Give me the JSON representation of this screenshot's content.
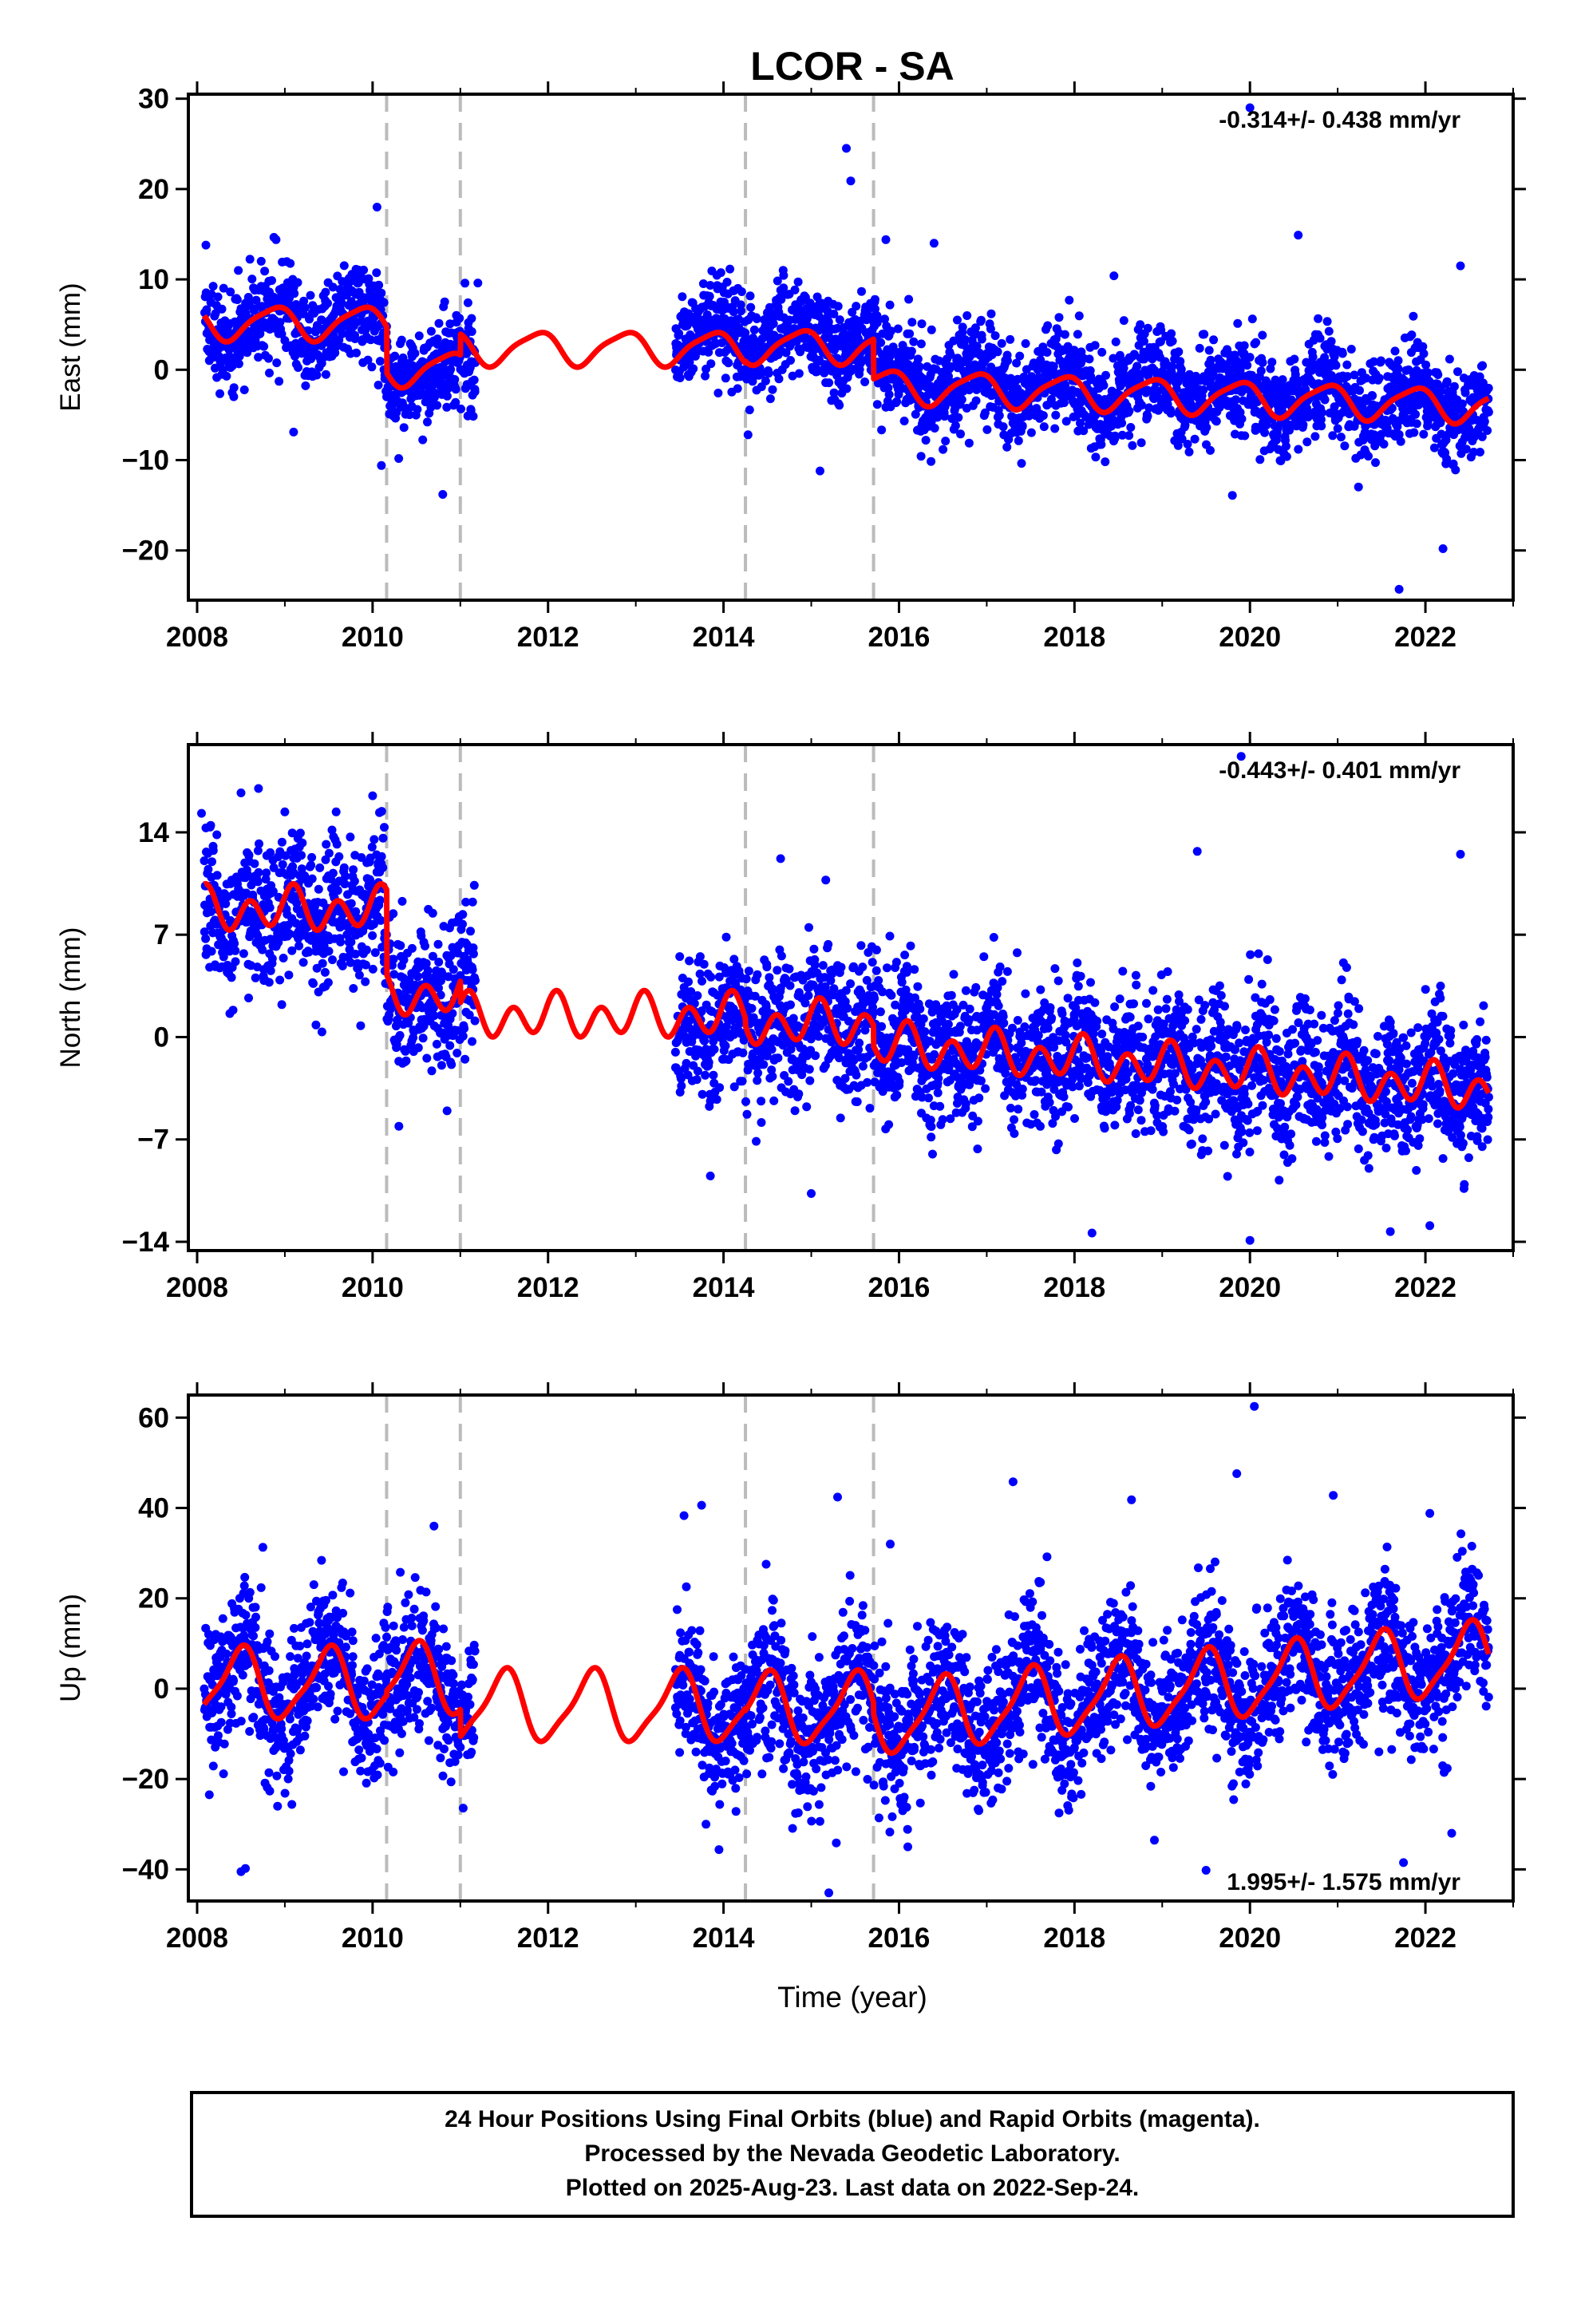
{
  "title": "LCOR - SA",
  "xlabel": "Time (year)",
  "footer": {
    "line1": "24 Hour Positions Using Final Orbits (blue) and Rapid Orbits (magenta).",
    "line2": "Processed by the Nevada Geodetic Laboratory.",
    "line3": "Plotted on 2025-Aug-23. Last data on 2022-Sep-24."
  },
  "colors": {
    "data": "#0000ff",
    "fit": "#ff0000",
    "breaks": "#bbbbbb",
    "frame": "#000000"
  },
  "chart_data": [
    {
      "type": "scatter",
      "component": "east",
      "ylabel": "East (mm)",
      "xlim": [
        2007.9,
        2023.0
      ],
      "ylim": [
        -25.5,
        30.5
      ],
      "xticks": [
        2008,
        2010,
        2012,
        2014,
        2016,
        2018,
        2020,
        2022
      ],
      "xtick_labels": [
        "2008",
        "2010",
        "2012",
        "2014",
        "2016",
        "2018",
        "2020",
        "2022"
      ],
      "yticks": [
        -20,
        -10,
        0,
        10,
        20,
        30
      ],
      "ytick_labels": [
        "−20",
        "−10",
        "0",
        "10",
        "20",
        "30"
      ],
      "rate_label": "-0.314+/- 0.438 mm/yr",
      "rate_position": "top-right",
      "breaks": [
        2010.16,
        2011.0,
        2014.25,
        2015.71
      ],
      "data_segments": [
        {
          "start": 2008.08,
          "end": 2010.13,
          "level": 5.0,
          "slope": 0.0
        },
        {
          "start": 2010.13,
          "end": 2011.17,
          "level": 0.0,
          "slope": 0.0
        },
        {
          "start": 2013.45,
          "end": 2015.75,
          "level": 3.5,
          "slope": 0.0
        },
        {
          "start": 2015.75,
          "end": 2022.72,
          "level": -0.8,
          "slope": -0.45
        }
      ],
      "noise_sigma": 2.6,
      "outliers": [
        {
          "x": 2008.1,
          "y": 13.8
        },
        {
          "x": 2008.9,
          "y": 14.4
        },
        {
          "x": 2009.1,
          "y": -6.9
        },
        {
          "x": 2010.05,
          "y": 18.0
        },
        {
          "x": 2010.1,
          "y": -10.6
        },
        {
          "x": 2010.8,
          "y": -13.8
        },
        {
          "x": 2011.2,
          "y": 9.6
        },
        {
          "x": 2015.1,
          "y": -11.2
        },
        {
          "x": 2015.4,
          "y": 24.5
        },
        {
          "x": 2015.45,
          "y": 20.9
        },
        {
          "x": 2015.85,
          "y": 14.4
        },
        {
          "x": 2016.4,
          "y": 14.0
        },
        {
          "x": 2018.45,
          "y": 10.4
        },
        {
          "x": 2019.8,
          "y": -13.9
        },
        {
          "x": 2020.0,
          "y": 29.0
        },
        {
          "x": 2020.55,
          "y": 14.9
        },
        {
          "x": 2021.7,
          "y": -24.3
        },
        {
          "x": 2022.2,
          "y": -19.8
        },
        {
          "x": 2022.4,
          "y": 11.5
        }
      ],
      "fit": {
        "segments": [
          {
            "start": 2008.08,
            "end": 2010.16,
            "level": 5.2,
            "slope": 0.0
          },
          {
            "start": 2010.16,
            "end": 2011.0,
            "level": 0.1,
            "slope": 0.0
          },
          {
            "start": 2011.0,
            "end": 2014.25,
            "level": 2.4,
            "slope": 0.0
          },
          {
            "start": 2014.25,
            "end": 2015.71,
            "level": 2.6,
            "slope": 0.0
          },
          {
            "start": 2015.71,
            "end": 2022.72,
            "level": -1.8,
            "slope": -0.314
          }
        ],
        "annual_amp": 1.8,
        "annual_phase": 2.4,
        "semiannual_amp": 0.4,
        "semiannual_phase": 1.0
      }
    },
    {
      "type": "scatter",
      "component": "north",
      "ylabel": "North (mm)",
      "xlim": [
        2007.9,
        2023.0
      ],
      "ylim": [
        -14.6,
        20.0
      ],
      "xticks": [
        2008,
        2010,
        2012,
        2014,
        2016,
        2018,
        2020,
        2022
      ],
      "xtick_labels": [
        "2008",
        "2010",
        "2012",
        "2014",
        "2016",
        "2018",
        "2020",
        "2022"
      ],
      "yticks": [
        -14,
        -7,
        0,
        7,
        14
      ],
      "ytick_labels": [
        "−14",
        "−7",
        "0",
        "7",
        "14"
      ],
      "rate_label": "-0.443+/- 0.401 mm/yr",
      "rate_position": "top-right",
      "breaks": [
        2010.16,
        2011.0,
        2014.25,
        2015.71
      ],
      "data_segments": [
        {
          "start": 2008.08,
          "end": 2010.13,
          "level": 8.6,
          "slope": 0.0
        },
        {
          "start": 2010.13,
          "end": 2011.17,
          "level": 2.8,
          "slope": 0.0
        },
        {
          "start": 2013.45,
          "end": 2015.75,
          "level": 0.8,
          "slope": 0.0
        },
        {
          "start": 2015.75,
          "end": 2022.72,
          "level": -0.5,
          "slope": -0.443
        }
      ],
      "noise_sigma": 2.4,
      "outliers": [
        {
          "x": 2008.05,
          "y": 15.3
        },
        {
          "x": 2008.5,
          "y": 16.7
        },
        {
          "x": 2008.7,
          "y": 17.0
        },
        {
          "x": 2009.0,
          "y": 15.4
        },
        {
          "x": 2010.0,
          "y": 16.5
        },
        {
          "x": 2010.3,
          "y": -6.1
        },
        {
          "x": 2013.85,
          "y": -9.5
        },
        {
          "x": 2014.65,
          "y": 12.2
        },
        {
          "x": 2015.0,
          "y": -10.7
        },
        {
          "x": 2018.2,
          "y": -13.4
        },
        {
          "x": 2019.4,
          "y": 12.7
        },
        {
          "x": 2019.9,
          "y": 19.2
        },
        {
          "x": 2020.0,
          "y": -13.9
        },
        {
          "x": 2021.6,
          "y": -13.3
        },
        {
          "x": 2022.05,
          "y": -12.9
        },
        {
          "x": 2022.4,
          "y": 12.5
        }
      ],
      "fit": {
        "segments": [
          {
            "start": 2008.08,
            "end": 2010.16,
            "level": 8.7,
            "slope": 0.0
          },
          {
            "start": 2010.16,
            "end": 2011.0,
            "level": 2.9,
            "slope": 0.0
          },
          {
            "start": 2011.0,
            "end": 2014.25,
            "level": 1.4,
            "slope": 0.0
          },
          {
            "start": 2014.25,
            "end": 2015.71,
            "level": 0.9,
            "slope": 0.0
          },
          {
            "start": 2015.71,
            "end": 2022.72,
            "level": -0.5,
            "slope": -0.443
          }
        ],
        "annual_amp": 0.6,
        "annual_phase": 1.2,
        "semiannual_amp": 1.2,
        "semiannual_phase": 0.3
      }
    },
    {
      "type": "scatter",
      "component": "up",
      "ylabel": "Up (mm)",
      "xlim": [
        2007.9,
        2023.0
      ],
      "ylim": [
        -47.0,
        65.0
      ],
      "xticks": [
        2008,
        2010,
        2012,
        2014,
        2016,
        2018,
        2020,
        2022
      ],
      "xtick_labels": [
        "2008",
        "2010",
        "2012",
        "2014",
        "2016",
        "2018",
        "2020",
        "2022"
      ],
      "yticks": [
        -40,
        -20,
        0,
        20,
        40,
        60
      ],
      "ytick_labels": [
        "−40",
        "−20",
        "0",
        "20",
        "40",
        "60"
      ],
      "rate_label": "1.995+/- 1.575 mm/yr",
      "rate_position": "bottom-right",
      "breaks": [
        2010.16,
        2011.0,
        2014.25,
        2015.71
      ],
      "data_segments": [
        {
          "start": 2008.08,
          "end": 2010.13,
          "level": 1.0,
          "slope": 0.0
        },
        {
          "start": 2010.13,
          "end": 2011.17,
          "level": 1.0,
          "slope": 0.0
        },
        {
          "start": 2013.45,
          "end": 2015.75,
          "level": -5.0,
          "slope": 0.0
        },
        {
          "start": 2015.75,
          "end": 2022.72,
          "level": -7.0,
          "slope": 1.995
        }
      ],
      "noise_sigma": 8.0,
      "outliers": [
        {
          "x": 2008.5,
          "y": -40.5
        },
        {
          "x": 2008.55,
          "y": -39.8
        },
        {
          "x": 2008.75,
          "y": 31.3
        },
        {
          "x": 2010.7,
          "y": 36.0
        },
        {
          "x": 2013.55,
          "y": 38.3
        },
        {
          "x": 2013.75,
          "y": 40.6
        },
        {
          "x": 2013.8,
          "y": -30.0
        },
        {
          "x": 2015.2,
          "y": -45.2
        },
        {
          "x": 2015.3,
          "y": 42.4
        },
        {
          "x": 2015.9,
          "y": 32.0
        },
        {
          "x": 2016.1,
          "y": -35.0
        },
        {
          "x": 2017.3,
          "y": 45.8
        },
        {
          "x": 2018.65,
          "y": 41.8
        },
        {
          "x": 2019.5,
          "y": -40.2
        },
        {
          "x": 2019.85,
          "y": 47.6
        },
        {
          "x": 2020.05,
          "y": 62.5
        },
        {
          "x": 2020.95,
          "y": 42.8
        },
        {
          "x": 2021.75,
          "y": -38.5
        },
        {
          "x": 2022.3,
          "y": -32.0
        },
        {
          "x": 2022.05,
          "y": 38.8
        }
      ],
      "fit": {
        "segments": [
          {
            "start": 2008.08,
            "end": 2010.16,
            "level": 1.0,
            "slope": 0.0
          },
          {
            "start": 2010.16,
            "end": 2011.0,
            "level": 2.0,
            "slope": 0.0
          },
          {
            "start": 2011.0,
            "end": 2014.25,
            "level": -4.0,
            "slope": 0.0
          },
          {
            "start": 2014.25,
            "end": 2015.71,
            "level": -4.5,
            "slope": 0.0
          },
          {
            "start": 2015.71,
            "end": 2022.72,
            "level": -7.0,
            "slope": 1.995
          }
        ],
        "annual_amp": 7.5,
        "annual_phase": -1.5,
        "semiannual_amp": 1.8,
        "semiannual_phase": 0.5
      }
    }
  ]
}
